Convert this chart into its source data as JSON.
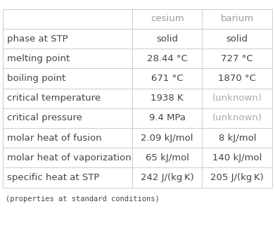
{
  "col_headers": [
    "cesium",
    "barium"
  ],
  "row_labels": [
    "phase at STP",
    "melting point",
    "boiling point",
    "critical temperature",
    "critical pressure",
    "molar heat of fusion",
    "molar heat of vaporization",
    "specific heat at STP"
  ],
  "col_cesium": [
    "solid",
    "28.44 °C",
    "671 °C",
    "1938 K",
    "9.4 MPa",
    "2.09 kJ/mol",
    "65 kJ/mol",
    "242 J/(kg K)"
  ],
  "col_barium": [
    "solid",
    "727 °C",
    "1870 °C",
    "(unknown)",
    "(unknown)",
    "8 kJ/mol",
    "140 kJ/mol",
    "205 J/(kg K)"
  ],
  "footer": "(properties at standard conditions)",
  "header_text_color": "#999999",
  "row_label_color": "#444444",
  "cell_color": "#444444",
  "unknown_color": "#aaaaaa",
  "grid_color": "#cccccc",
  "bg_color": "#ffffff",
  "header_fontsize": 9.5,
  "cell_fontsize": 9.5,
  "footer_fontsize": 7.5
}
